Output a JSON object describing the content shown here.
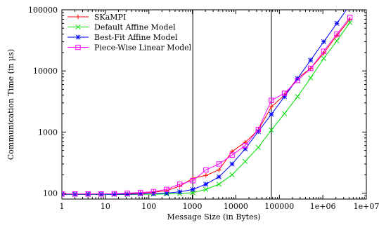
{
  "chart_data": {
    "type": "line",
    "title": "",
    "xlabel": "Message Size (in Bytes)",
    "ylabel": "Communication Time (in µs)",
    "x_scale": "log",
    "y_scale": "log",
    "xlim": [
      1,
      10000000
    ],
    "ylim": [
      80,
      100000
    ],
    "x_ticks": [
      1,
      10,
      100,
      1000,
      10000,
      100000,
      1000000,
      10000000
    ],
    "x_tick_labels": [
      "1",
      "10",
      "100",
      "1000",
      "10000",
      "100000",
      "1e+06",
      "1e+07"
    ],
    "y_ticks": [
      100,
      1000,
      10000,
      100000
    ],
    "y_tick_labels": [
      "100",
      "1000",
      "10000",
      "100000"
    ],
    "vertical_lines": [
      1024,
      65536
    ],
    "legend_position": "top-left",
    "grid": false,
    "x": [
      1,
      2,
      4,
      8,
      16,
      32,
      64,
      128,
      256,
      512,
      1024,
      2048,
      4096,
      8192,
      16384,
      32768,
      65536,
      131072,
      262144,
      524288,
      1048576,
      2097152,
      4194304
    ],
    "series": [
      {
        "name": "SKaMPI",
        "color": "#ff0000",
        "marker": "plus",
        "values": [
          97,
          97,
          97,
          97,
          98,
          98,
          100,
          103,
          110,
          130,
          175,
          195,
          240,
          480,
          680,
          1080,
          2600,
          4000,
          7600,
          11000,
          19500,
          38000,
          70000
        ]
      },
      {
        "name": "Default Affine Model",
        "color": "#00dd00",
        "marker": "x",
        "values": [
          95,
          95,
          95,
          95,
          95,
          95,
          96,
          96,
          97,
          98,
          102,
          115,
          140,
          200,
          330,
          560,
          1080,
          2000,
          3800,
          7700,
          16000,
          31000,
          62000
        ]
      },
      {
        "name": "Best-Fit Affine Model",
        "color": "#0000ff",
        "marker": "asterisk",
        "values": [
          96,
          96,
          96,
          96,
          96,
          96,
          97,
          98,
          100,
          105,
          115,
          140,
          185,
          300,
          530,
          1020,
          1950,
          3800,
          7500,
          15000,
          30000,
          60000,
          120000
        ]
      },
      {
        "name": "Piece-Wise Linear Model",
        "color": "#ff00ff",
        "marker": "square",
        "values": [
          97,
          97,
          97,
          97,
          98,
          100,
          102,
          106,
          115,
          140,
          160,
          240,
          300,
          420,
          600,
          1100,
          3300,
          4300,
          7000,
          11000,
          21000,
          40000,
          75000
        ]
      }
    ]
  }
}
